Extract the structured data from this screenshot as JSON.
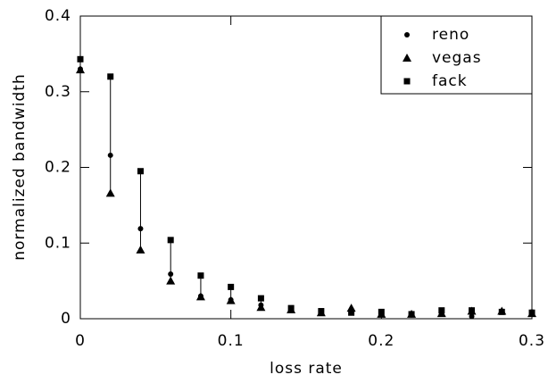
{
  "chart_data": {
    "type": "scatter",
    "x_label": "loss rate",
    "y_label": "normalized bandwidth",
    "x": [
      0,
      0.02,
      0.04,
      0.06,
      0.08,
      0.1,
      0.12,
      0.14,
      0.16,
      0.18,
      0.2,
      0.22,
      0.24,
      0.26,
      0.28,
      0.3
    ],
    "series": [
      {
        "name": "reno",
        "color": "#000000",
        "marker": "circle",
        "values": [
          0.33,
          0.216,
          0.119,
          0.059,
          0.03,
          0.025,
          0.018,
          0.012,
          0.008,
          0.01,
          0.007,
          0.005,
          0.006,
          0.003,
          0.009,
          0.009
        ]
      },
      {
        "name": "vegas",
        "color": "#000000",
        "marker": "triangle",
        "values": [
          0.329,
          0.166,
          0.091,
          0.05,
          0.029,
          0.024,
          0.015,
          0.012,
          0.008,
          0.014,
          0.006,
          0.006,
          0.007,
          0.01,
          0.01,
          0.007
        ]
      },
      {
        "name": "fack",
        "color": "#000000",
        "marker": "square",
        "values": [
          0.343,
          0.32,
          0.195,
          0.104,
          0.057,
          0.042,
          0.027,
          0.014,
          0.01,
          0.008,
          0.009,
          0.006,
          0.011,
          0.011,
          0.009,
          0.008
        ]
      }
    ],
    "xlim": [
      0,
      0.3
    ],
    "ylim": [
      0,
      0.4
    ],
    "xticks": [
      0,
      0.1,
      0.2,
      0.3
    ],
    "yticks": [
      0,
      0.1,
      0.2,
      0.3,
      0.4
    ],
    "legend": "upper right"
  }
}
